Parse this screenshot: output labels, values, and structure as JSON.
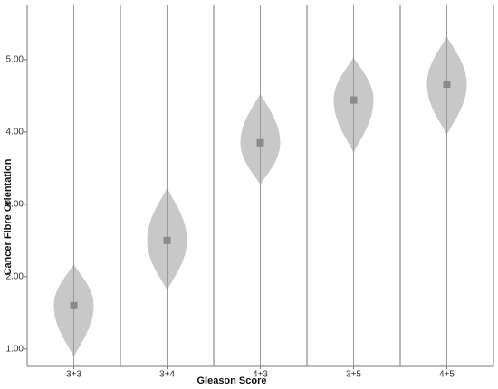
{
  "chart_data": {
    "type": "violin",
    "x_label": "Gleason Score",
    "y_label": "Cancer Fibre Orientation",
    "categories": [
      "3+3",
      "3+4",
      "4+3",
      "3+5",
      "4+5"
    ],
    "min": [
      0.88,
      1.8,
      3.26,
      3.7,
      3.95
    ],
    "max": [
      2.18,
      3.24,
      4.54,
      5.04,
      5.33
    ],
    "median": [
      1.6,
      2.5,
      3.85,
      4.44,
      4.66
    ],
    "color": "#c8c8c8",
    "marker_color": "#8a8a8a",
    "ylim": [
      0.76,
      5.76
    ],
    "yticks": [
      {
        "value": 1,
        "label": "1.00"
      },
      {
        "value": 2,
        "label": "2.00"
      },
      {
        "value": 3,
        "label": "3.00"
      },
      {
        "value": 4,
        "label": "4.00"
      },
      {
        "value": 5,
        "label": "5.00"
      }
    ],
    "grid": true
  }
}
